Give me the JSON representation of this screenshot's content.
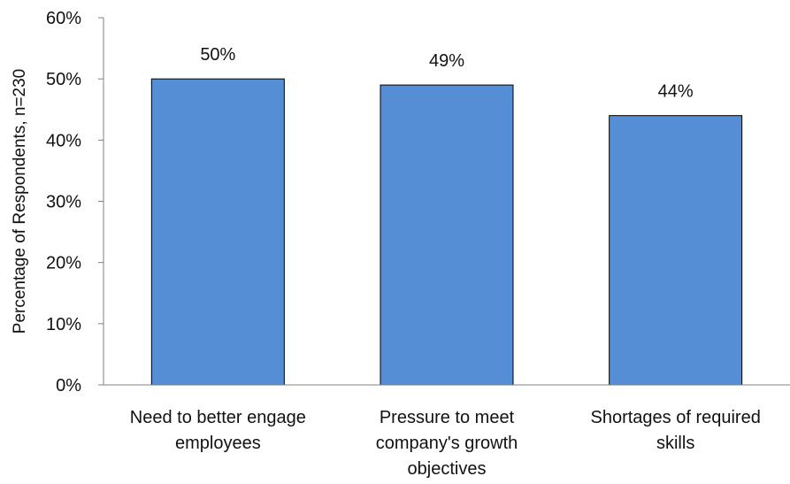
{
  "chart_data": {
    "type": "bar",
    "categories": [
      [
        "Need to better engage",
        "employees"
      ],
      [
        "Pressure to meet",
        "company's growth",
        "objectives"
      ],
      [
        "Shortages of required",
        "skills"
      ]
    ],
    "values": [
      50,
      49,
      44
    ],
    "data_labels": [
      "50%",
      "49%",
      "44%"
    ],
    "title": "",
    "xlabel": "",
    "ylabel": "Percentage of Respondents, n=230",
    "ylim": [
      0,
      60
    ],
    "yticks": [
      0,
      10,
      20,
      30,
      40,
      50,
      60
    ],
    "ytick_labels": [
      "0%",
      "10%",
      "20%",
      "30%",
      "40%",
      "50%",
      "60%"
    ],
    "grid": false,
    "legend": "none",
    "bar_color": "#558ED5",
    "bar_edge_color": "#000000"
  }
}
